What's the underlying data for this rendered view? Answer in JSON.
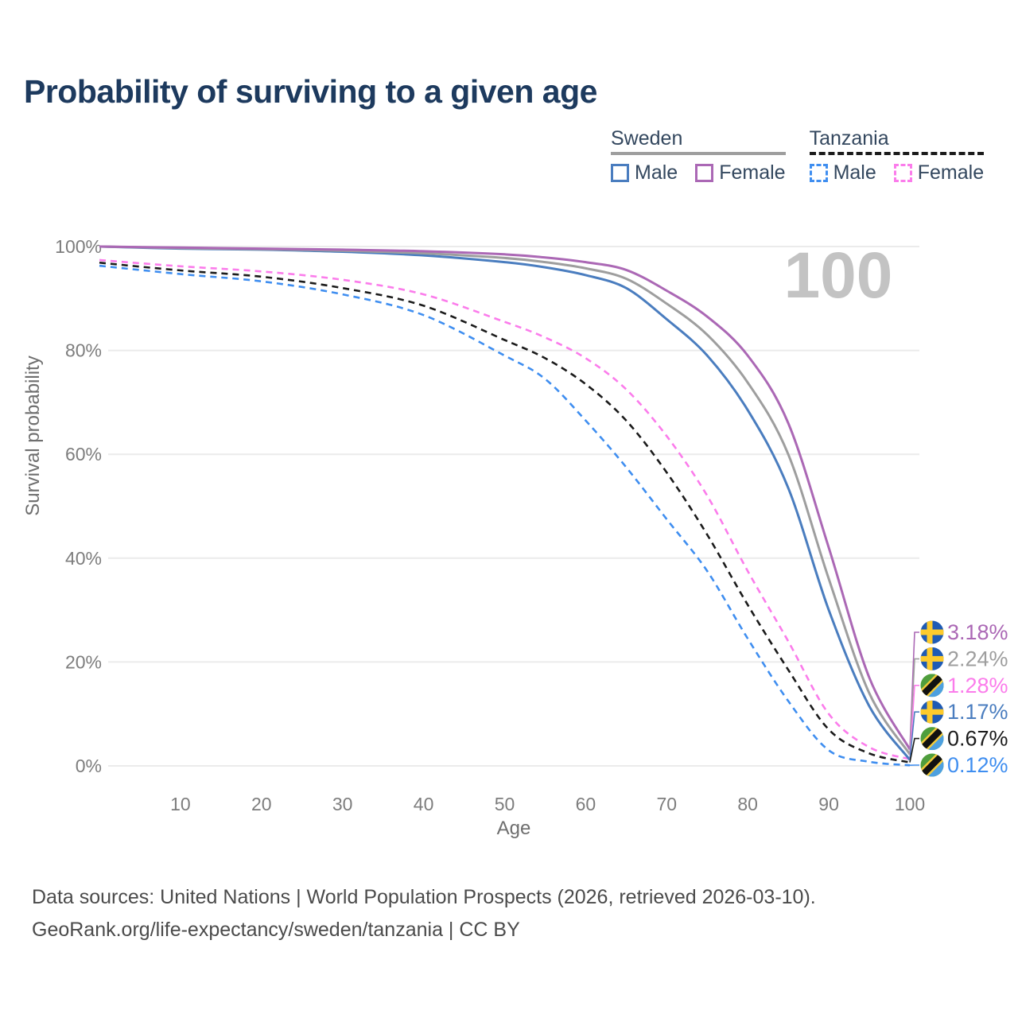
{
  "title": "Probability of surviving to a given age",
  "legend": {
    "groups": [
      {
        "country": "Sweden",
        "line_style": "solid",
        "underline_color": "#9e9e9e",
        "items": [
          {
            "label": "Male",
            "color": "#4a7dbf"
          },
          {
            "label": "Female",
            "color": "#ab68b5"
          }
        ]
      },
      {
        "country": "Tanzania",
        "line_style": "dashed",
        "underline_color": "#1b1b1b",
        "items": [
          {
            "label": "Male",
            "color": "#3f8ef0"
          },
          {
            "label": "Female",
            "color": "#fb7ceb"
          }
        ]
      }
    ]
  },
  "chart_data": {
    "type": "line",
    "title": "Probability of surviving to a given age",
    "xlabel": "Age",
    "ylabel": "Survival probability",
    "xlim": [
      0,
      100
    ],
    "ylim": [
      0,
      100
    ],
    "x_ticks": [
      10,
      20,
      30,
      40,
      50,
      60,
      70,
      80,
      90,
      100
    ],
    "y_ticks": [
      {
        "value": 0,
        "label": "0%"
      },
      {
        "value": 20,
        "label": "20%"
      },
      {
        "value": 40,
        "label": "40%"
      },
      {
        "value": 60,
        "label": "60%"
      },
      {
        "value": 80,
        "label": "80%"
      },
      {
        "value": 100,
        "label": "100%"
      }
    ],
    "grid": "horizontal-only",
    "watermark": "100",
    "ages": [
      0,
      10,
      20,
      30,
      40,
      50,
      55,
      60,
      65,
      70,
      75,
      80,
      85,
      90,
      95,
      100
    ],
    "series": [
      {
        "name": "Tanzania Male",
        "country": "Tanzania",
        "sex": "Male",
        "style": "dashed",
        "color": "#3f8ef0",
        "flag": "tanzania",
        "end_label": "0.12%",
        "values": [
          96.3,
          94.7,
          93.3,
          90.8,
          86.8,
          79.0,
          74.5,
          66.5,
          57.5,
          47.5,
          37.5,
          24.5,
          12.5,
          3.0,
          0.8,
          0.12
        ]
      },
      {
        "name": "Tanzania Both sexes",
        "country": "Tanzania",
        "sex": "Both",
        "style": "dashed",
        "color": "#1b1b1b",
        "flag": "tanzania",
        "end_label": "0.67%",
        "values": [
          96.9,
          95.4,
          94.2,
          92.0,
          88.6,
          82.0,
          78.5,
          73.5,
          66.5,
          56.5,
          44.5,
          31.0,
          18.5,
          7.0,
          2.4,
          0.67
        ]
      },
      {
        "name": "Tanzania Female",
        "country": "Tanzania",
        "sex": "Female",
        "style": "dashed",
        "color": "#fb7ceb",
        "flag": "tanzania",
        "end_label": "1.28%",
        "values": [
          97.4,
          96.2,
          95.2,
          93.6,
          90.8,
          85.5,
          82.5,
          78.5,
          72.5,
          63.5,
          52.0,
          37.5,
          24.0,
          10.0,
          3.6,
          1.28
        ]
      },
      {
        "name": "Sweden Male",
        "country": "Sweden",
        "sex": "Male",
        "style": "solid",
        "color": "#4a7dbf",
        "flag": "sweden",
        "end_label": "1.17%",
        "values": [
          100,
          99.6,
          99.4,
          99.0,
          98.3,
          97.0,
          96.0,
          94.5,
          92.0,
          86.0,
          79.0,
          68.5,
          53.5,
          30.0,
          11.5,
          1.17
        ]
      },
      {
        "name": "Sweden Both sexes",
        "country": "Sweden",
        "sex": "Both",
        "style": "solid",
        "color": "#9e9e9e",
        "flag": "sweden",
        "end_label": "2.24%",
        "values": [
          100,
          99.7,
          99.5,
          99.2,
          98.7,
          97.8,
          97.0,
          95.8,
          93.8,
          89.0,
          83.0,
          73.8,
          60.0,
          36.0,
          14.0,
          2.24
        ]
      },
      {
        "name": "Sweden Female",
        "country": "Sweden",
        "sex": "Female",
        "style": "solid",
        "color": "#ab68b5",
        "flag": "sweden",
        "end_label": "3.18%",
        "values": [
          100,
          99.8,
          99.6,
          99.4,
          99.1,
          98.5,
          97.9,
          97.0,
          95.5,
          91.5,
          86.5,
          79.0,
          66.0,
          42.0,
          17.0,
          3.18
        ]
      }
    ],
    "end_label_order_top_to_bottom": [
      "3.18%",
      "2.24%",
      "1.28%",
      "1.17%",
      "0.67%",
      "0.12%"
    ],
    "legend_position": "top-right"
  },
  "colors": {
    "title": "#1d3a5e",
    "grid": "#ebebeb",
    "tick_label": "#7d7d7d",
    "axis_title": "#6e6e6e",
    "watermark": "#c3c3c3",
    "footer": "#4b4b4b",
    "sweden_flag_blue": "#1f5bb4",
    "sweden_flag_yellow": "#fdcb2d",
    "tanzania_flag_green": "#4f9e3d",
    "tanzania_flag_blue": "#4da0e0",
    "tanzania_flag_yellow": "#f2ca3a",
    "tanzania_flag_black": "#111111"
  },
  "footer": {
    "line1": "Data sources: United Nations | World Population Prospects (2026, retrieved 2026-03-10).",
    "line2": "GeoRank.org/life-expectancy/sweden/tanzania | CC BY"
  }
}
